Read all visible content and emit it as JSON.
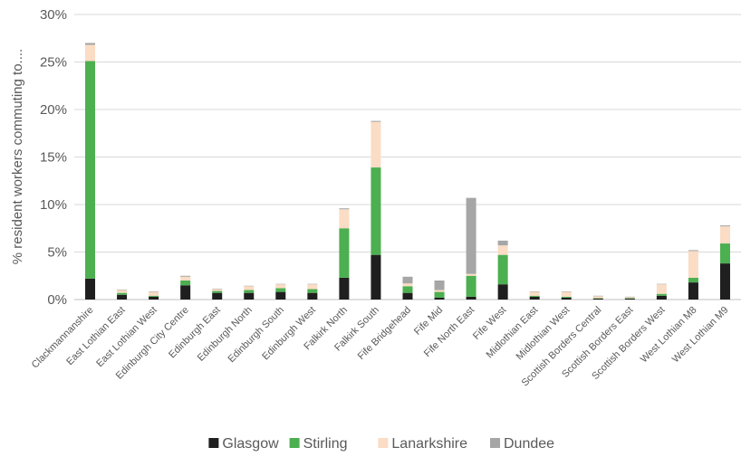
{
  "chart_data": {
    "type": "bar",
    "stacked": true,
    "ylabel": "% resident workers commuting to....",
    "ylim": [
      0,
      30
    ],
    "yticks": [
      "0%",
      "5%",
      "10%",
      "15%",
      "20%",
      "25%",
      "30%"
    ],
    "grid": true,
    "legend_position": "bottom",
    "categories": [
      "Clackmannanshire",
      "East Lothian East",
      "East Lothian West",
      "Edinburgh City Centre",
      "Edinburgh East",
      "Edinburgh North",
      "Edinburgh South",
      "Edinburgh West",
      "Falkirk North",
      "Falkirk South",
      "Fife Bridgehead",
      "Fife Mid",
      "Fife North East",
      "Fife West",
      "Midlothian East",
      "Midlothian West",
      "Scottish Borders Central",
      "Scottish Borders East",
      "Scottish Borders West",
      "West Lothian M8",
      "West Lothian M9"
    ],
    "series": [
      {
        "name": "Glasgow",
        "color": "#1f1f1f",
        "values": [
          2.2,
          0.5,
          0.3,
          1.5,
          0.7,
          0.7,
          0.8,
          0.7,
          2.3,
          4.7,
          0.7,
          0.2,
          0.3,
          1.6,
          0.3,
          0.2,
          0.1,
          0.1,
          0.4,
          1.8,
          3.8
        ]
      },
      {
        "name": "Stirling",
        "color": "#4caf50",
        "values": [
          22.9,
          0.2,
          0.1,
          0.5,
          0.2,
          0.3,
          0.4,
          0.4,
          5.2,
          9.2,
          0.7,
          0.6,
          2.2,
          3.1,
          0.1,
          0.1,
          0.05,
          0.05,
          0.2,
          0.5,
          2.1
        ]
      },
      {
        "name": "Lanarkshire",
        "color": "#fbdcc4",
        "values": [
          1.7,
          0.3,
          0.4,
          0.4,
          0.2,
          0.4,
          0.4,
          0.5,
          2.0,
          4.8,
          0.3,
          0.2,
          0.2,
          1.0,
          0.4,
          0.5,
          0.2,
          0.1,
          1.0,
          2.8,
          1.8
        ]
      },
      {
        "name": "Dundee",
        "color": "#a6a6a6",
        "values": [
          0.2,
          0.05,
          0.05,
          0.1,
          0.05,
          0.05,
          0.05,
          0.05,
          0.1,
          0.1,
          0.7,
          1.0,
          8.0,
          0.5,
          0.05,
          0.05,
          0.05,
          0.05,
          0.05,
          0.1,
          0.1
        ]
      }
    ]
  }
}
